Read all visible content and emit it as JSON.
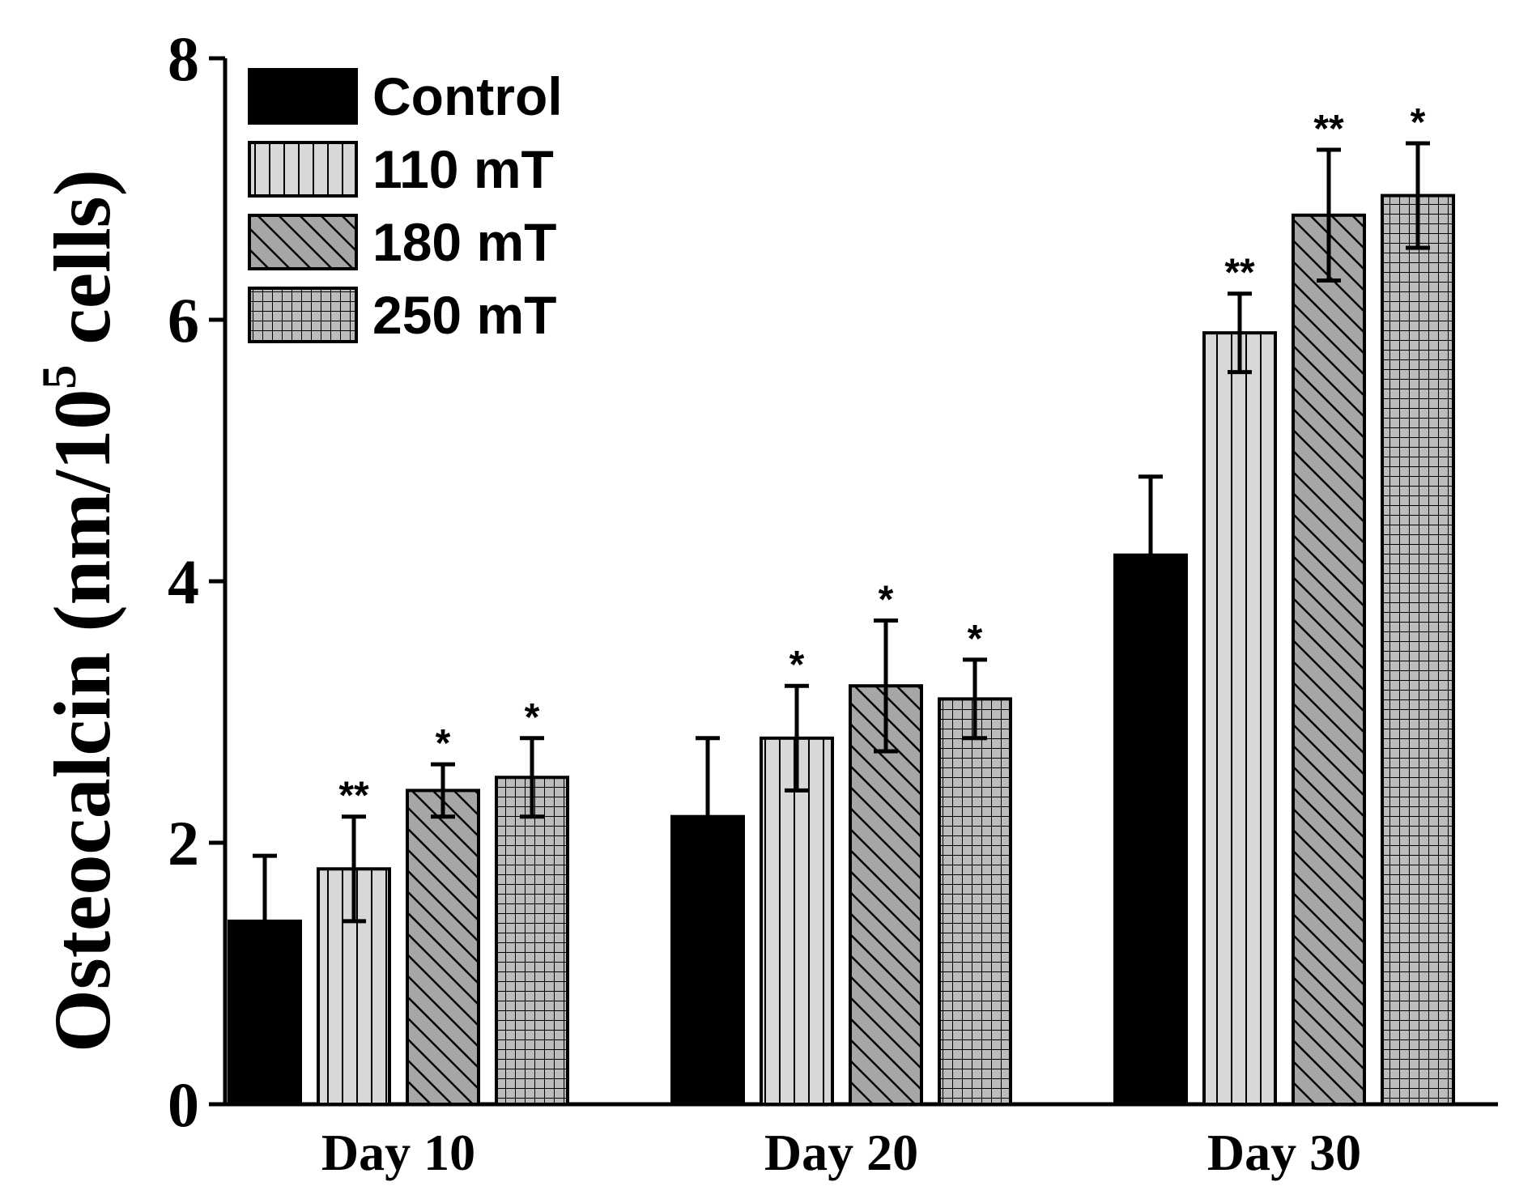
{
  "chart_data": {
    "type": "bar",
    "title": "",
    "xlabel": "",
    "ylabel": "Osteocalcin (nm/10",
    "ylabel_superscript": "5",
    "ylabel_suffix": " cells)",
    "ylim": [
      0,
      8
    ],
    "yticks": [
      "0",
      "2",
      "4",
      "6",
      "8"
    ],
    "categories": [
      "Day 10",
      "Day 20",
      "Day 30"
    ],
    "legend_position": "top-left",
    "grid": false,
    "series": [
      {
        "name": "Control",
        "pattern": "solid-black",
        "values": [
          1.4,
          2.2,
          4.2
        ],
        "errors": [
          0.5,
          0.6,
          0.6
        ],
        "significance": [
          "",
          "",
          ""
        ]
      },
      {
        "name": "110 mT",
        "pattern": "vertical-lines",
        "values": [
          1.8,
          2.8,
          5.9
        ],
        "errors": [
          0.4,
          0.4,
          0.3
        ],
        "significance": [
          "**",
          "*",
          "**"
        ]
      },
      {
        "name": "180 mT",
        "pattern": "diagonal-lines",
        "values": [
          2.4,
          3.2,
          6.8
        ],
        "errors": [
          0.2,
          0.5,
          0.5
        ],
        "significance": [
          "*",
          "*",
          "**"
        ]
      },
      {
        "name": " 250 mT",
        "pattern": "grid",
        "values": [
          2.5,
          3.1,
          6.95
        ],
        "errors": [
          0.3,
          0.3,
          0.4
        ],
        "significance": [
          "*",
          "*",
          "*"
        ]
      }
    ],
    "colors": {
      "control": "#000000",
      "light": "#d8d8d8",
      "mid": "#a6a6a6",
      "grid": "#bcbcbc"
    }
  }
}
